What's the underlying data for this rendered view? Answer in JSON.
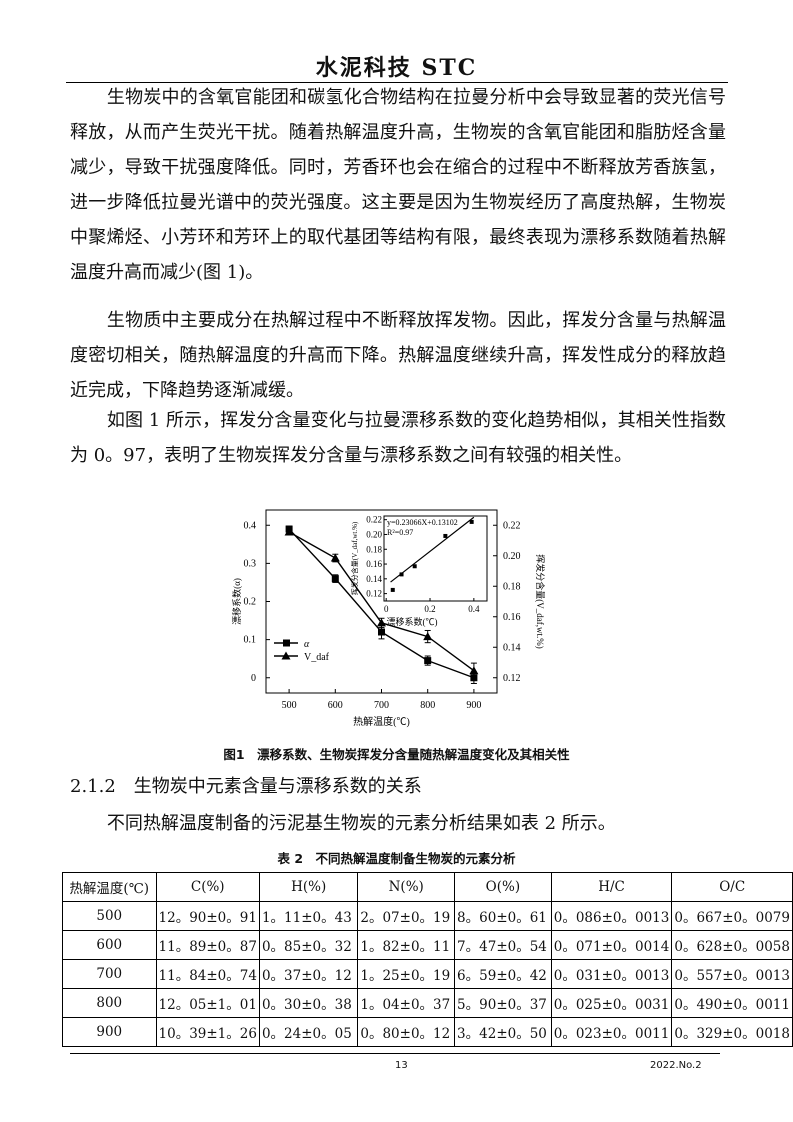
{
  "header": {
    "title": "水泥科技 STC"
  },
  "paragraphs": [
    "生物炭中的含氧官能团和碳氢化合物结构在拉曼分析中会导致显著的荧光信号释放，从而产生荧光干扰。随着热解温度升高，生物炭的含氧官能团和脂肪烃含量减少，导致干扰强度降低。同时，芳香环也会在缩合的过程中不断释放芳香族氢，进一步降低拉曼光谱中的荧光强度。这主要是因为生物炭经历了高度热解，生物炭中聚烯烃、小芳环和芳环上的取代基团等结构有限，最终表现为漂移系数随着热解温度升高而减少(图 1)。",
    "生物质中主要成分在热解过程中不断释放挥发物。因此，挥发分含量与热解温度密切相关，随热解温度的升高而下降。热解温度继续升高，挥发性成分的释放趋近完成，下降趋势逐渐减缓。",
    "如图 1 所示，挥发分含量变化与拉曼漂移系数的变化趋势相似，其相关性指数为 0。97，表明了生物炭挥发分含量与漂移系数之间有较强的相关性。"
  ],
  "figure_caption": "图1　漂移系数、生物炭挥发分含量随热解温度变化及其相关性",
  "section_heading": "2.1.2　生物炭中元素含量与漂移系数的关系",
  "section_paragraph": "不同热解温度制备的污泥基生物炭的元素分析结果如表 2 所示。",
  "table_caption": "表 2　不同热解温度制备生物炭的元素分析",
  "table": {
    "headers": [
      "热解温度(℃)",
      "C(%)",
      "H(%)",
      "N(%)",
      "O(%)",
      "H/C",
      "O/C"
    ],
    "rows": [
      [
        "500",
        "12。90±0。91",
        "1。11±0。43",
        "2。07±0。19",
        "8。60±0。61",
        "0。086±0。0013",
        "0。667±0。0079"
      ],
      [
        "600",
        "11。89±0。87",
        "0。85±0。32",
        "1。82±0。11",
        "7。47±0。54",
        "0。071±0。0014",
        "0。628±0。0058"
      ],
      [
        "700",
        "11。84±0。74",
        "0。37±0。12",
        "1。25±0。19",
        "6。59±0。42",
        "0。031±0。0013",
        "0。557±0。0013"
      ],
      [
        "800",
        "12。05±1。01",
        "0。30±0。38",
        "1。04±0。37",
        "5。90±0。37",
        "0。025±0。0031",
        "0。490±0。0011"
      ],
      [
        "900",
        "10。39±1。26",
        "0。24±0。05",
        "0。80±0。12",
        "3。42±0。50",
        "0。023±0。0011",
        "0。329±0。0018"
      ]
    ]
  },
  "footer": {
    "page": "13",
    "issue": "2022.No.2"
  },
  "chart_data": {
    "type": "line",
    "xlabel": "热解温度(℃)",
    "ylabel": "漂移系数(α)",
    "y2label": "挥发分含量(V_daf,wt.%)",
    "x": [
      500,
      600,
      700,
      800,
      900
    ],
    "xlim": [
      450,
      950
    ],
    "ylim": [
      -0.04,
      0.44
    ],
    "y2lim": [
      0.11,
      0.23
    ],
    "xticks": [
      "500",
      "600",
      "700",
      "800",
      "900"
    ],
    "yticks": [
      "0",
      "0.1",
      "0.2",
      "0.3",
      "0.4"
    ],
    "y2ticks": [
      "0.12",
      "0.14",
      "0.16",
      "0.18",
      "0.20",
      "0.22"
    ],
    "series": [
      {
        "name": "α",
        "axis": "left",
        "marker": "square",
        "values": [
          0.39,
          0.26,
          0.12,
          0.045,
          0.0
        ],
        "errors": [
          0.008,
          0.01,
          0.018,
          0.012,
          0.015
        ]
      },
      {
        "name": "V_daf",
        "axis": "right",
        "marker": "triangle",
        "values": [
          0.2156,
          0.1985,
          0.156,
          0.147,
          0.1246
        ],
        "errors": [
          0.001,
          0.0025,
          0.003,
          0.004,
          0.005
        ]
      }
    ],
    "legend": "left",
    "inset": {
      "type": "scatter",
      "xlabel": "漂移系数(℃)",
      "ylabel": "挥发分含量(V_daf,wt.%)",
      "xlim": [
        -0.01,
        0.46
      ],
      "ylim": [
        0.11,
        0.225
      ],
      "xticks": [
        "0",
        "0.2",
        "0.4"
      ],
      "yticks": [
        "0.12",
        "0.14",
        "0.16",
        "0.18",
        "0.20",
        "0.22"
      ],
      "points": [
        [
          0.03,
          0.125
        ],
        [
          0.07,
          0.146
        ],
        [
          0.13,
          0.157
        ],
        [
          0.27,
          0.198
        ],
        [
          0.39,
          0.217
        ]
      ],
      "fit": {
        "slope": 0.23066,
        "intercept": 0.13102
      },
      "equation": "y=0.23066X+0.13102",
      "r2": "R²=0.97"
    }
  }
}
